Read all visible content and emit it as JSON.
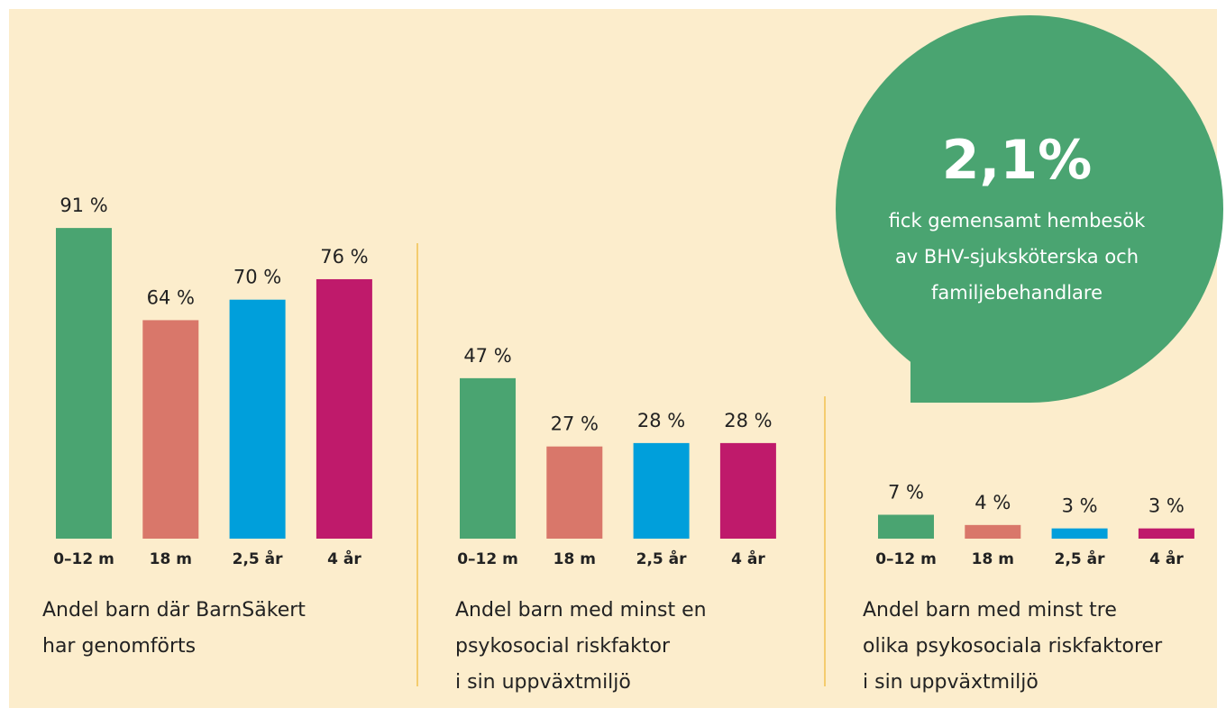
{
  "chart_data": [
    {
      "type": "bar",
      "title": [
        "Andel barn där BarnSäkert",
        "har genomförts"
      ],
      "categories": [
        "0–12 m",
        "18 m",
        "2,5 år",
        "4 år"
      ],
      "values": [
        91,
        64,
        70,
        76
      ],
      "value_labels": [
        "91 %",
        "64 %",
        "70 %",
        "76 %"
      ],
      "colors": [
        "#4aa471",
        "#d9776a",
        "#009fdb",
        "#bf1a6b"
      ]
    },
    {
      "type": "bar",
      "title": [
        "Andel barn med minst en",
        "psykosocial riskfaktor",
        "i sin uppväxtmiljö"
      ],
      "categories": [
        "0–12 m",
        "18 m",
        "2,5 år",
        "4 år"
      ],
      "values": [
        47,
        27,
        28,
        28
      ],
      "value_labels": [
        "47 %",
        "27 %",
        "28 %",
        "28 %"
      ],
      "colors": [
        "#4aa471",
        "#d9776a",
        "#009fdb",
        "#bf1a6b"
      ]
    },
    {
      "type": "bar",
      "title": [
        "Andel barn med minst tre",
        "olika psykosociala riskfaktorer",
        "i sin uppväxtmiljö"
      ],
      "categories": [
        "0–12 m",
        "18 m",
        "2,5 år",
        "4 år"
      ],
      "values": [
        7,
        4,
        3,
        3
      ],
      "value_labels": [
        "7 %",
        "4 %",
        "3 %",
        "3 %"
      ],
      "colors": [
        "#4aa471",
        "#d9776a",
        "#009fdb",
        "#bf1a6b"
      ]
    }
  ],
  "callout": {
    "headline": "2,1%",
    "lines": [
      "fick gemensamt hembesök",
      "av BHV-sjuksköterska och",
      "familjebehandlare"
    ]
  }
}
